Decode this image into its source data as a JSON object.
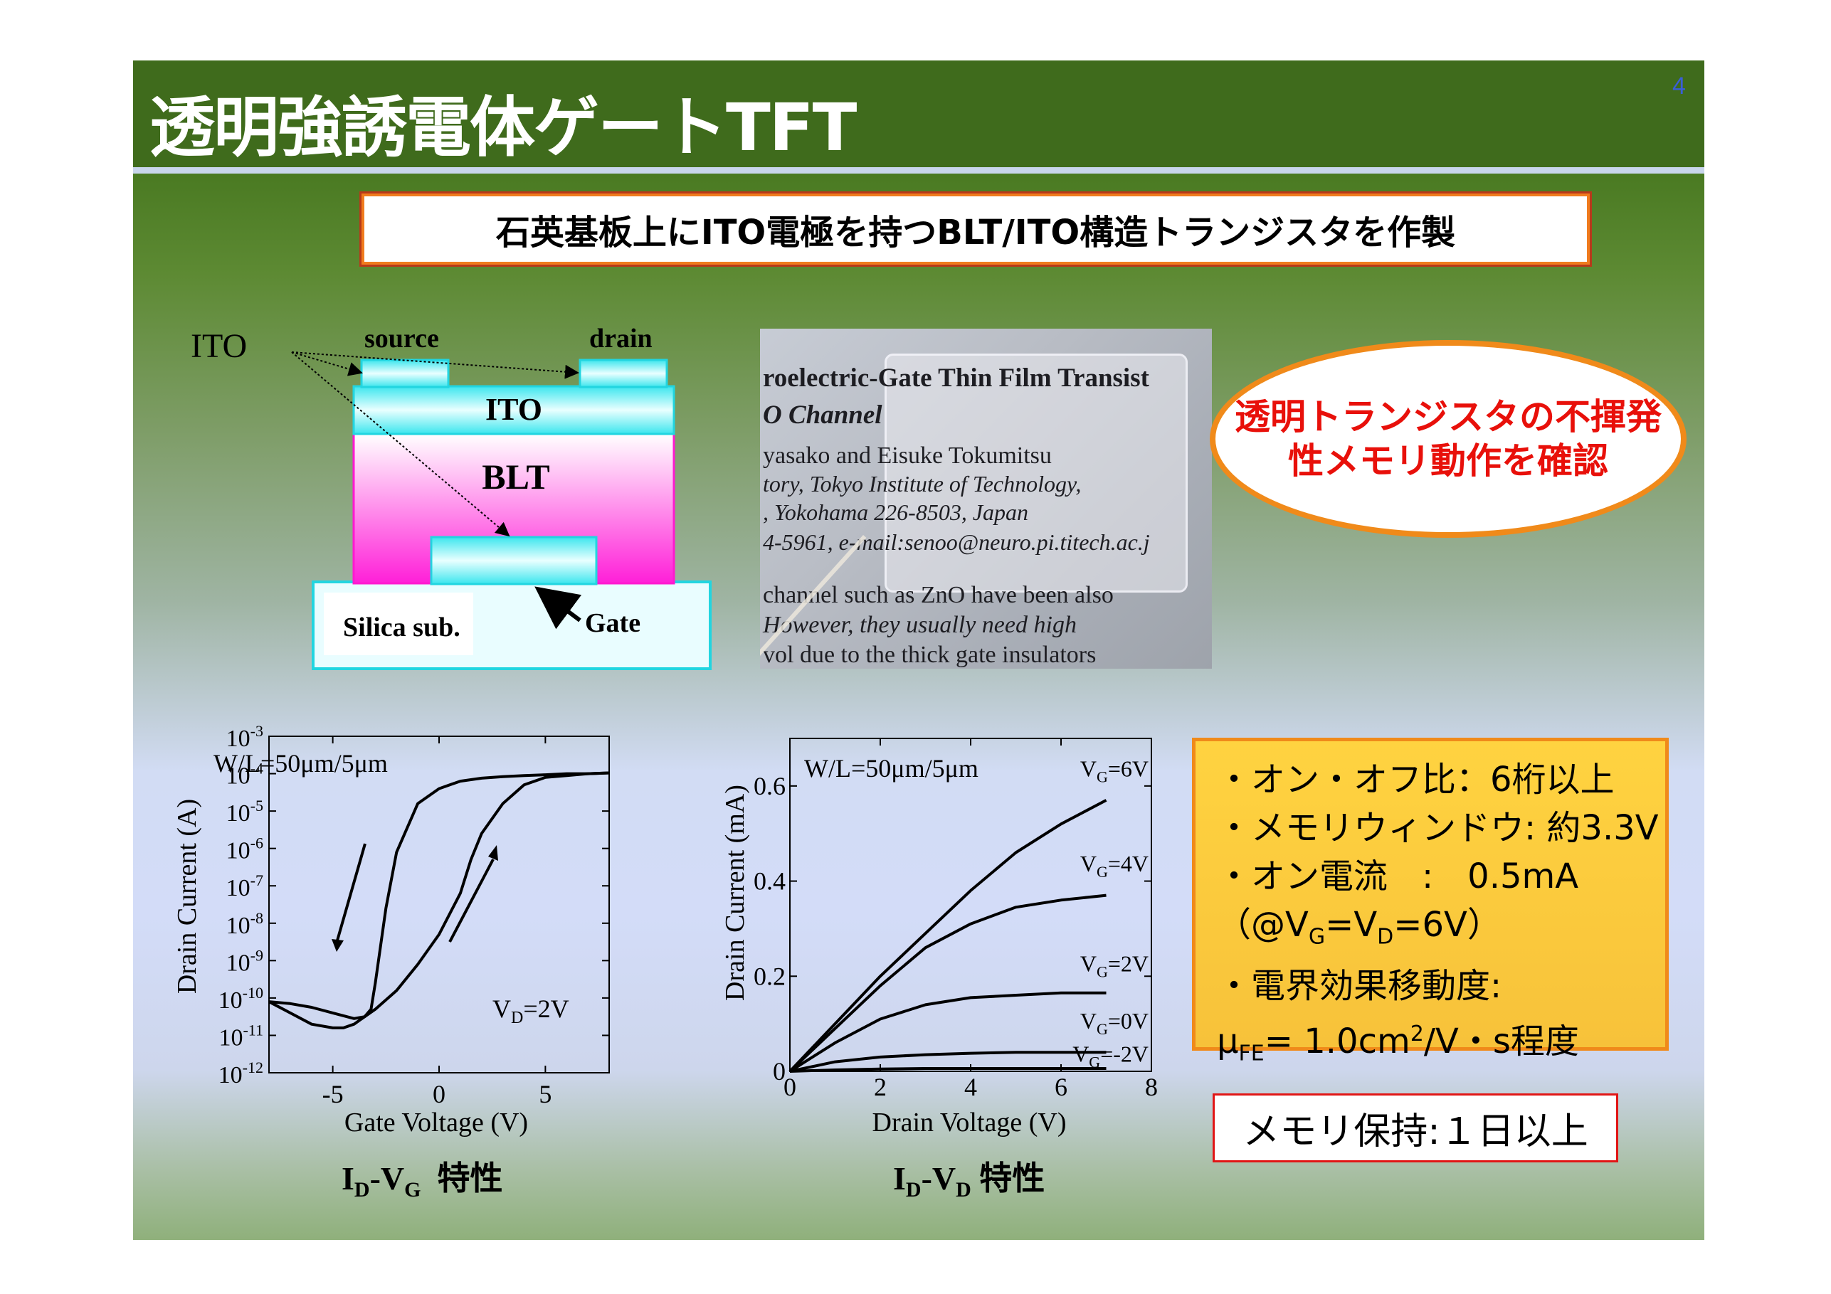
{
  "slide": {
    "title": "透明強誘電体ゲートTFT",
    "page_number": "4",
    "headline": "石英基板上にITO電極を持つBLT/ITO構造トランジスタを作製"
  },
  "diagram": {
    "ito_label": "ITO",
    "source_label": "source",
    "drain_label": "drain",
    "ito_layer": "ITO",
    "blt_layer": "BLT",
    "substrate": "Silica sub.",
    "gate_label": "Gate"
  },
  "photo": {
    "lines": [
      "roelectric-Gate Thin Film Transist",
      "O Channel",
      "yasako and Eisuke Tokumitsu",
      "tory, Tokyo Institute of Technology,",
      ", Yokohama 226-8503, Japan",
      "4-5961, e-mail:senoo@neuro.pi.titech.ac.j",
      "channel such as ZnO have been also",
      "However, they usually need high",
      "vol   due to the thick gate insulators"
    ]
  },
  "callout": {
    "line1": "透明トランジスタの不揮発",
    "line2": "性メモリ動作を確認"
  },
  "specs": {
    "line1": "・オン・オフ比：6桁以上",
    "line2": "・メモリウィンドウ: 約3.3V",
    "line3": "・オン電流　:　0.5mA",
    "line4_prefix": "（@V",
    "line4_sub1": "G",
    "line4_mid": "=V",
    "line4_sub2": "D",
    "line4_suffix": "=6V）",
    "line5": "・電界効果移動度:",
    "line6_prefix": "μ",
    "line6_sub": "FE",
    "line6_mid": "=  1.0cm",
    "line6_sup": "2",
    "line6_suffix": "/V・s程度"
  },
  "retention": "メモリ保持:１日以上",
  "chart_data": [
    {
      "type": "line",
      "caption_main": "I",
      "caption_sub1": "D",
      "caption_dash": "-V",
      "caption_sub2": "G",
      "caption_jp": "特性",
      "xlabel": "Gate Voltage (V)",
      "ylabel": "Drain Current (A)",
      "yscale": "log",
      "xlim": [
        -8,
        8
      ],
      "ylim_exp": [
        -12,
        -3
      ],
      "x_ticks": [
        "-5",
        "0",
        "5"
      ],
      "x_tick_values": [
        -5,
        0,
        5
      ],
      "y_tick_exponents": [
        -3,
        -4,
        -5,
        -6,
        -7,
        -8,
        -9,
        -10,
        -11,
        -12
      ],
      "annotation": "W/L=50μm/5μm",
      "vd_label_main": "V",
      "vd_label_sub": "D",
      "vd_label_value": "=2V",
      "series": [
        {
          "x": [
            -8,
            -7,
            -6,
            -5,
            -4.5,
            -4,
            -3.5,
            -3.2,
            -3,
            -2.5,
            -2,
            -1,
            0,
            1,
            2,
            3,
            4,
            5,
            6,
            7,
            8
          ],
          "log_y": [
            -10.1,
            -10.4,
            -10.7,
            -10.8,
            -10.8,
            -10.7,
            -10.5,
            -10.3,
            -9.6,
            -7.6,
            -6.1,
            -4.8,
            -4.4,
            -4.2,
            -4.12,
            -4.08,
            -4.05,
            -4.03,
            -4.0,
            -4.0,
            -3.98
          ]
        },
        {
          "x": [
            8,
            7,
            6,
            5,
            4,
            3,
            2,
            1.5,
            1,
            0,
            -1,
            -2,
            -3,
            -3.5,
            -4,
            -5,
            -6,
            -7,
            -8
          ],
          "log_y": [
            -3.98,
            -4.0,
            -4.05,
            -4.1,
            -4.3,
            -4.8,
            -5.6,
            -6.3,
            -7.2,
            -8.3,
            -9.1,
            -9.8,
            -10.3,
            -10.5,
            -10.55,
            -10.4,
            -10.25,
            -10.15,
            -10.1
          ]
        }
      ]
    },
    {
      "type": "line",
      "caption_main": "I",
      "caption_sub1": "D",
      "caption_dash": "-V",
      "caption_sub2": "D",
      "caption_jp": "特性",
      "xlabel": "Drain Voltage (V)",
      "ylabel": "Drain Current (mA)",
      "xlim": [
        0,
        8
      ],
      "ylim": [
        0,
        0.7
      ],
      "x_ticks": [
        0,
        2,
        4,
        6,
        8
      ],
      "y_ticks": [
        "0",
        "0.2",
        "0.4",
        "0.6"
      ],
      "y_tick_values": [
        0,
        0.2,
        0.4,
        0.6
      ],
      "annotation": "W/L=50μm/5μm",
      "series": [
        {
          "name": "6V",
          "x": [
            0,
            1,
            2,
            3,
            4,
            5,
            6,
            7
          ],
          "y": [
            0,
            0.1,
            0.2,
            0.29,
            0.38,
            0.46,
            0.52,
            0.57
          ]
        },
        {
          "name": "4V",
          "x": [
            0,
            1,
            2,
            3,
            4,
            5,
            6,
            7
          ],
          "y": [
            0,
            0.09,
            0.18,
            0.26,
            0.31,
            0.345,
            0.36,
            0.37
          ]
        },
        {
          "name": "2V",
          "x": [
            0,
            1,
            2,
            3,
            4,
            5,
            6,
            7
          ],
          "y": [
            0,
            0.06,
            0.11,
            0.14,
            0.155,
            0.16,
            0.165,
            0.165
          ]
        },
        {
          "name": "0V",
          "x": [
            0,
            1,
            2,
            3,
            4,
            5,
            6,
            7
          ],
          "y": [
            0,
            0.02,
            0.03,
            0.035,
            0.038,
            0.04,
            0.04,
            0.04
          ]
        },
        {
          "name": "-2V",
          "x": [
            0,
            1,
            2,
            3,
            4,
            5,
            6,
            7
          ],
          "y": [
            0,
            0.003,
            0.005,
            0.006,
            0.006,
            0.006,
            0.006,
            0.006
          ]
        }
      ],
      "vg_labels": [
        "6V",
        "4V",
        "2V",
        "0V",
        "-2V"
      ]
    }
  ]
}
